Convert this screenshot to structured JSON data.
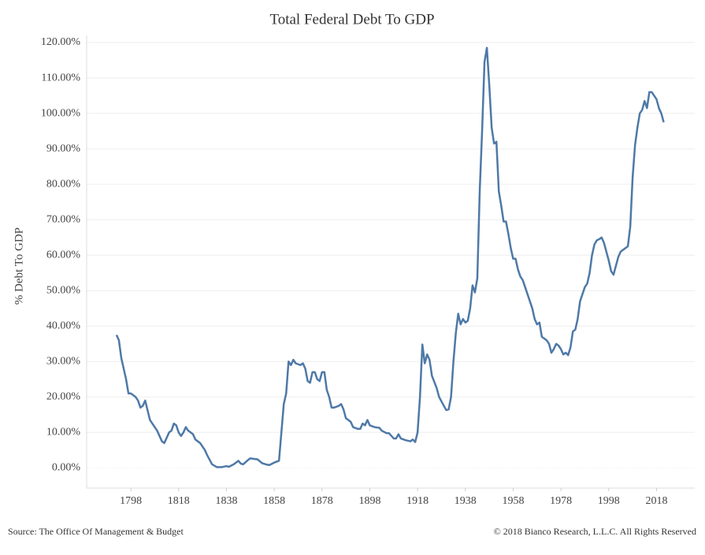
{
  "chart_data": {
    "type": "line",
    "title": "Total Federal Debt To GDP",
    "y_label": "% Debt To GDP",
    "source": "Source: The Office Of Management & Budget",
    "copyright": "© 2018 Bianco Research, L.L.C. All Rights Reserved",
    "x": [
      1792,
      1793,
      1794,
      1796,
      1797,
      1798,
      1800,
      1801,
      1802,
      1803,
      1804,
      1806,
      1808,
      1809,
      1811,
      1812,
      1813,
      1814,
      1815,
      1816,
      1817,
      1818,
      1819,
      1820,
      1821,
      1822,
      1824,
      1825,
      1827,
      1829,
      1830,
      1832,
      1834,
      1836,
      1838,
      1839,
      1841,
      1843,
      1844,
      1845,
      1847,
      1848,
      1850,
      1851,
      1853,
      1855,
      1856,
      1858,
      1860,
      1861,
      1862,
      1863,
      1864,
      1865,
      1866,
      1867,
      1869,
      1870,
      1871,
      1872,
      1873,
      1874,
      1875,
      1876,
      1877,
      1878,
      1879,
      1880,
      1881,
      1882,
      1883,
      1885,
      1886,
      1887,
      1888,
      1890,
      1891,
      1893,
      1894,
      1895,
      1896,
      1897,
      1898,
      1900,
      1902,
      1903,
      1905,
      1906,
      1908,
      1909,
      1910,
      1911,
      1913,
      1915,
      1916,
      1917,
      1918,
      1919,
      1920,
      1921,
      1922,
      1923,
      1924,
      1926,
      1927,
      1929,
      1930,
      1931,
      1932,
      1933,
      1934,
      1935,
      1936,
      1937,
      1938,
      1939,
      1940,
      1941,
      1942,
      1943,
      1944,
      1945,
      1946,
      1947,
      1948,
      1949,
      1950,
      1951,
      1952,
      1953,
      1954,
      1955,
      1956,
      1957,
      1958,
      1959,
      1960,
      1961,
      1962,
      1963,
      1965,
      1966,
      1967,
      1968,
      1969,
      1970,
      1971,
      1972,
      1973,
      1974,
      1975,
      1976,
      1977,
      1978,
      1979,
      1980,
      1981,
      1982,
      1983,
      1984,
      1985,
      1986,
      1987,
      1988,
      1989,
      1990,
      1991,
      1992,
      1993,
      1994,
      1995,
      1996,
      1997,
      1998,
      1999,
      2000,
      2001,
      2002,
      2003,
      2004,
      2005,
      2006,
      2007,
      2008,
      2009,
      2010,
      2011,
      2012,
      2013,
      2014,
      2015,
      2016,
      2017,
      2018,
      2019,
      2020,
      2021
    ],
    "series": [
      {
        "name": "% Debt To GDP",
        "color": "#4e79a7",
        "values": [
          37.5,
          36,
          31,
          25,
          21,
          21,
          20,
          19,
          17,
          17.5,
          19,
          13.5,
          11.5,
          10.5,
          7.5,
          7,
          8.5,
          10,
          10.5,
          12.5,
          12,
          10,
          9,
          10,
          11.5,
          10.5,
          9.5,
          8,
          7,
          5,
          3.5,
          1,
          0.2,
          0.2,
          0.5,
          0.3,
          1,
          2,
          1.2,
          1,
          2.2,
          2.7,
          2.5,
          2.4,
          1.3,
          0.9,
          0.8,
          1.5,
          2,
          10,
          18,
          21,
          30,
          29,
          30.5,
          29.5,
          29,
          29.5,
          28,
          24.5,
          24,
          27,
          27,
          25,
          24.5,
          27,
          27,
          22,
          20,
          17,
          17,
          17.5,
          18,
          16.5,
          14,
          13,
          11.5,
          11,
          11,
          12.5,
          12,
          13.5,
          12,
          11.5,
          11.3,
          10.5,
          9.8,
          9.8,
          8.3,
          8.3,
          9.5,
          8.3,
          7.8,
          7.5,
          8,
          7.3,
          10,
          20,
          34.8,
          29.5,
          32,
          30.5,
          26,
          22.5,
          20,
          17.5,
          16.3,
          16.5,
          20,
          30,
          38,
          43.5,
          40.5,
          42,
          41,
          41.5,
          45,
          51.5,
          49.5,
          53.5,
          78,
          95,
          114.5,
          118.5,
          108,
          96,
          91.5,
          92,
          78,
          74,
          69.5,
          69.5,
          66,
          62,
          59,
          59,
          56,
          54,
          53,
          51,
          47,
          45,
          42,
          40.5,
          41,
          37,
          36.5,
          36,
          35,
          32.5,
          33.5,
          35,
          34.5,
          33.5,
          32,
          32.5,
          31.8,
          34,
          38.5,
          39,
          42,
          47,
          49,
          51,
          52,
          55,
          60,
          63,
          64.2,
          64.5,
          65,
          63.5,
          61,
          58.5,
          55.5,
          54.5,
          57,
          59.5,
          61,
          61.5,
          62,
          62.5,
          68,
          82,
          91,
          96,
          100,
          101,
          103.5,
          101.5,
          106,
          106,
          105,
          104,
          101.5,
          100,
          97.5
        ]
      }
    ],
    "xlim": [
      1779.5,
      2034
    ],
    "xticks": [
      1798,
      1818,
      1838,
      1858,
      1878,
      1898,
      1918,
      1938,
      1958,
      1978,
      1998,
      2018
    ],
    "ylim": [
      -5.7,
      122
    ],
    "yticks": [
      {
        "value": 0,
        "label": "0.00%"
      },
      {
        "value": 10,
        "label": "10.00%"
      },
      {
        "value": 20,
        "label": "20.00%"
      },
      {
        "value": 30,
        "label": "30.00%"
      },
      {
        "value": 40,
        "label": "40.00%"
      },
      {
        "value": 50,
        "label": "50.00%"
      },
      {
        "value": 60,
        "label": "60.00%"
      },
      {
        "value": 70,
        "label": "70.00%"
      },
      {
        "value": 80,
        "label": "80.00%"
      },
      {
        "value": 90,
        "label": "90.00%"
      },
      {
        "value": 100,
        "label": "100.00%"
      },
      {
        "value": 110,
        "label": "110.00%"
      },
      {
        "value": 120,
        "label": "120.00%"
      }
    ],
    "grid": true
  }
}
